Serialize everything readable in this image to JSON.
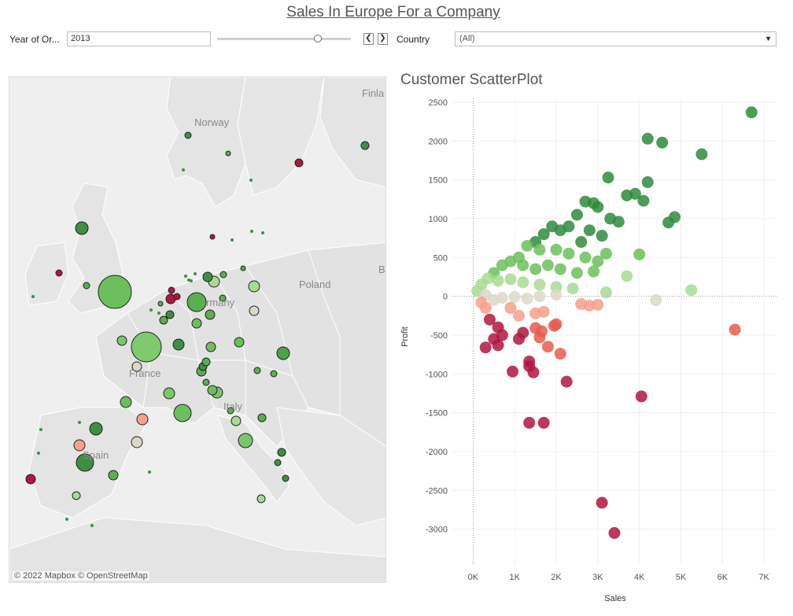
{
  "dashboard": {
    "title": "Sales In Europe For a Company"
  },
  "filters": {
    "year_label": "Year of Or...",
    "year_value": "2013",
    "year_slider_position": 0.75,
    "prev_icon": "chevron-left-icon",
    "next_icon": "chevron-right-icon",
    "country_label": "Country",
    "country_value": "(All)",
    "caret_icon": "chevron-down-icon"
  },
  "map": {
    "labels": {
      "norway": "Norway",
      "finland": "Finla",
      "germany": "rmany",
      "poland": "Poland",
      "france": "France",
      "spain": "Spain",
      "italy": "Italy",
      "belarus": "B"
    },
    "attribution": "© 2022 Mapbox  © OpenStreetMap"
  },
  "scatter": {
    "title": "Customer ScatterPlot",
    "xlabel": "Sales",
    "ylabel": "Profit",
    "x_ticks": [
      "0K",
      "1K",
      "2K",
      "3K",
      "4K",
      "5K",
      "6K",
      "7K"
    ],
    "y_ticks": [
      "2500",
      "2000",
      "1500",
      "1000",
      "500",
      "0",
      "-500",
      "-1000",
      "-1500",
      "-2000",
      "-2500",
      "-3000"
    ]
  },
  "colors": {
    "dark_green": "#2e8b3e",
    "mid_green": "#6cbf5c",
    "light_green": "#a8da94",
    "neutral": "#dcd8c8",
    "light_red": "#f7a08c",
    "mid_red": "#e85a4f",
    "dark_red": "#b0163f"
  },
  "chart_data": {
    "type": "scatter",
    "xlabel": "Sales",
    "ylabel": "Profit",
    "xlim": [
      -500,
      7300
    ],
    "ylim": [
      -3450,
      2550
    ],
    "points": [
      {
        "x": 6700,
        "y": 2370
      },
      {
        "x": 4200,
        "y": 2030
      },
      {
        "x": 4550,
        "y": 1980
      },
      {
        "x": 5500,
        "y": 1830
      },
      {
        "x": 3250,
        "y": 1530
      },
      {
        "x": 4200,
        "y": 1470
      },
      {
        "x": 3700,
        "y": 1300
      },
      {
        "x": 3900,
        "y": 1320
      },
      {
        "x": 4100,
        "y": 1230
      },
      {
        "x": 2700,
        "y": 1220
      },
      {
        "x": 2900,
        "y": 1200
      },
      {
        "x": 3000,
        "y": 1150
      },
      {
        "x": 3300,
        "y": 1000
      },
      {
        "x": 3500,
        "y": 960
      },
      {
        "x": 4850,
        "y": 1020
      },
      {
        "x": 4700,
        "y": 950
      },
      {
        "x": 2500,
        "y": 1050
      },
      {
        "x": 2300,
        "y": 900
      },
      {
        "x": 2100,
        "y": 850
      },
      {
        "x": 1900,
        "y": 900
      },
      {
        "x": 1700,
        "y": 800
      },
      {
        "x": 2800,
        "y": 850
      },
      {
        "x": 3100,
        "y": 780
      },
      {
        "x": 2600,
        "y": 700
      },
      {
        "x": 1500,
        "y": 700
      },
      {
        "x": 1300,
        "y": 650
      },
      {
        "x": 1600,
        "y": 600
      },
      {
        "x": 2000,
        "y": 600
      },
      {
        "x": 2300,
        "y": 550
      },
      {
        "x": 2700,
        "y": 500
      },
      {
        "x": 3000,
        "y": 450
      },
      {
        "x": 3200,
        "y": 550
      },
      {
        "x": 4000,
        "y": 540
      },
      {
        "x": 1100,
        "y": 500
      },
      {
        "x": 900,
        "y": 450
      },
      {
        "x": 700,
        "y": 400
      },
      {
        "x": 1200,
        "y": 400
      },
      {
        "x": 1500,
        "y": 350
      },
      {
        "x": 1800,
        "y": 400
      },
      {
        "x": 2100,
        "y": 350
      },
      {
        "x": 2500,
        "y": 300
      },
      {
        "x": 2900,
        "y": 320
      },
      {
        "x": 3700,
        "y": 260
      },
      {
        "x": 500,
        "y": 300
      },
      {
        "x": 350,
        "y": 230
      },
      {
        "x": 200,
        "y": 150
      },
      {
        "x": 100,
        "y": 70
      },
      {
        "x": 600,
        "y": 200
      },
      {
        "x": 900,
        "y": 220
      },
      {
        "x": 1200,
        "y": 180
      },
      {
        "x": 1600,
        "y": 150
      },
      {
        "x": 2000,
        "y": 120
      },
      {
        "x": 2400,
        "y": 100
      },
      {
        "x": 3200,
        "y": 50
      },
      {
        "x": 5250,
        "y": 80
      },
      {
        "x": 300,
        "y": 20
      },
      {
        "x": 500,
        "y": -50
      },
      {
        "x": 700,
        "y": -20
      },
      {
        "x": 1000,
        "y": -10
      },
      {
        "x": 1300,
        "y": -30
      },
      {
        "x": 1600,
        "y": 0
      },
      {
        "x": 2000,
        "y": 20
      },
      {
        "x": 4400,
        "y": -50
      },
      {
        "x": 2600,
        "y": -100
      },
      {
        "x": 2800,
        "y": -120
      },
      {
        "x": 3000,
        "y": -110
      },
      {
        "x": 1500,
        "y": -220
      },
      {
        "x": 1700,
        "y": -200
      },
      {
        "x": 900,
        "y": -150
      },
      {
        "x": 1100,
        "y": -250
      },
      {
        "x": 6300,
        "y": -430
      },
      {
        "x": 2000,
        "y": -360
      },
      {
        "x": 1950,
        "y": -380
      },
      {
        "x": 1500,
        "y": -410
      },
      {
        "x": 1600,
        "y": -530
      },
      {
        "x": 1800,
        "y": -650
      },
      {
        "x": 1650,
        "y": -450
      },
      {
        "x": 300,
        "y": -150
      },
      {
        "x": 200,
        "y": -80
      },
      {
        "x": 400,
        "y": -300
      },
      {
        "x": 600,
        "y": -400
      },
      {
        "x": 700,
        "y": -500
      },
      {
        "x": 1100,
        "y": -550
      },
      {
        "x": 1200,
        "y": -470
      },
      {
        "x": 500,
        "y": -550
      },
      {
        "x": 300,
        "y": -660
      },
      {
        "x": 600,
        "y": -630
      },
      {
        "x": 1350,
        "y": -840
      },
      {
        "x": 1350,
        "y": -900
      },
      {
        "x": 1450,
        "y": -980
      },
      {
        "x": 2100,
        "y": -740
      },
      {
        "x": 950,
        "y": -970
      },
      {
        "x": 2250,
        "y": -1100
      },
      {
        "x": 1350,
        "y": -1630
      },
      {
        "x": 1700,
        "y": -1630
      },
      {
        "x": 4050,
        "y": -1290
      },
      {
        "x": 3100,
        "y": -2660
      },
      {
        "x": 3400,
        "y": -3050
      }
    ]
  }
}
